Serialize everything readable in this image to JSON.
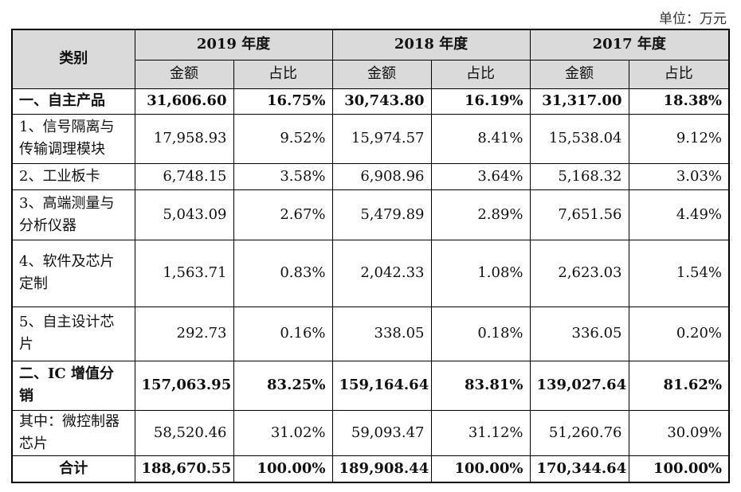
{
  "unit_label": "单位：万元",
  "header": {
    "category": "类别",
    "years": [
      "2019 年度",
      "2018 年度",
      "2017 年度"
    ],
    "amount": "金额",
    "ratio": "占比"
  },
  "rows": [
    {
      "label": "一、自主产品",
      "values": [
        "31,606.60",
        "16.75%",
        "30,743.80",
        "16.19%",
        "31,317.00",
        "18.38%"
      ]
    },
    {
      "label": "1、信号隔离与传输调理模块",
      "values": [
        "17,958.93",
        "9.52%",
        "15,974.57",
        "8.41%",
        "15,538.04",
        "9.12%"
      ]
    },
    {
      "label": "2、工业板卡",
      "values": [
        "6,748.15",
        "3.58%",
        "6,908.96",
        "3.64%",
        "5,168.32",
        "3.03%"
      ]
    },
    {
      "label": "3、高端测量与分析仪器",
      "values": [
        "5,043.09",
        "2.67%",
        "5,479.89",
        "2.89%",
        "7,651.56",
        "4.49%"
      ]
    },
    {
      "label": "4、软件及芯片定制",
      "values": [
        "1,563.71",
        "0.83%",
        "2,042.33",
        "1.08%",
        "2,623.03",
        "1.54%"
      ]
    },
    {
      "label": "5、自主设计芯片",
      "values": [
        "292.73",
        "0.16%",
        "338.05",
        "0.18%",
        "336.05",
        "0.20%"
      ]
    },
    {
      "label": "二、IC 增值分销",
      "values": [
        "157,063.95",
        "83.25%",
        "159,164.64",
        "83.81%",
        "139,027.64",
        "81.62%"
      ]
    },
    {
      "label": "其中：微控制器芯片",
      "values": [
        "58,520.46",
        "31.02%",
        "59,093.47",
        "31.12%",
        "51,260.76",
        "30.09%"
      ]
    },
    {
      "label": "合计",
      "values": [
        "188,670.55",
        "100.00%",
        "189,908.44",
        "100.00%",
        "170,344.64",
        "100.00%"
      ]
    }
  ]
}
